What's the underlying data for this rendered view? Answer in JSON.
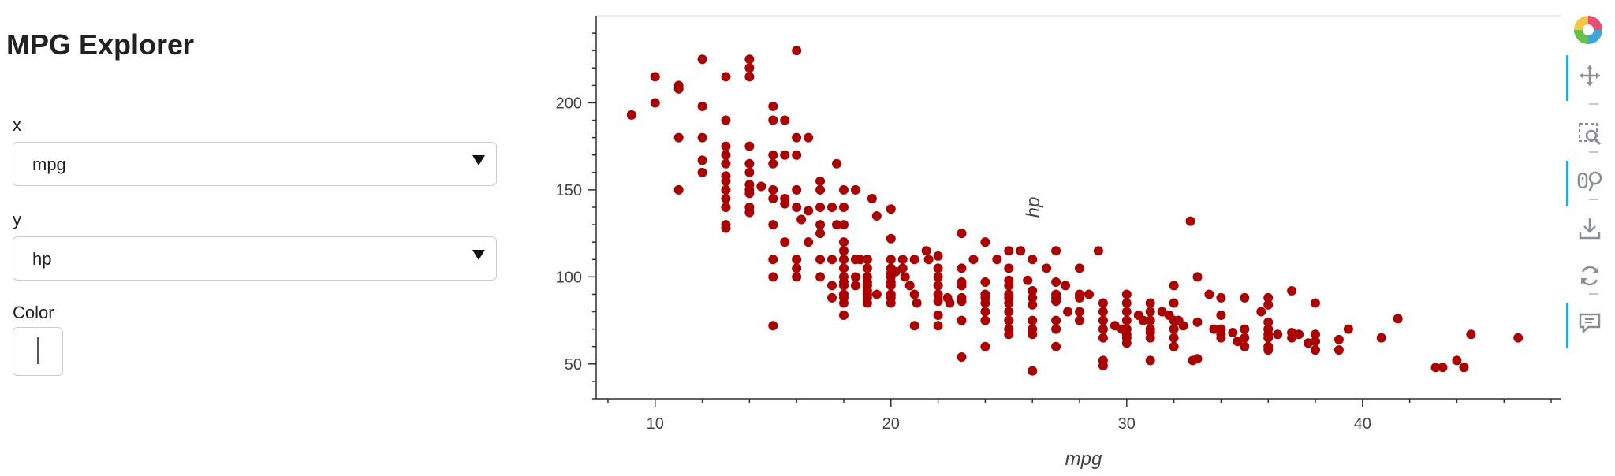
{
  "app": {
    "title": "MPG Explorer"
  },
  "controls": {
    "x": {
      "label": "x",
      "value": "mpg"
    },
    "y": {
      "label": "y",
      "value": "hp"
    },
    "color": {
      "label": "Color",
      "value": "#aa0000"
    }
  },
  "toolbar": {
    "tools": [
      {
        "name": "bokeh-logo-icon",
        "active": false
      },
      {
        "name": "pan-icon",
        "active": true
      },
      {
        "name": "box-zoom-icon",
        "active": false
      },
      {
        "name": "wheel-zoom-icon",
        "active": true
      },
      {
        "name": "save-icon",
        "active": false
      },
      {
        "name": "reset-icon",
        "active": false
      },
      {
        "name": "hover-icon",
        "active": true
      }
    ]
  },
  "chart_data": {
    "type": "scatter",
    "xlabel": "mpg",
    "ylabel": "hp",
    "xlim": [
      7.5,
      48.5
    ],
    "ylim": [
      30,
      250
    ],
    "x_ticks": [
      10,
      20,
      30,
      40
    ],
    "y_ticks": [
      50,
      100,
      150,
      200
    ],
    "color": "#aa0000",
    "grid": false,
    "points": [
      [
        9,
        193
      ],
      [
        10,
        215
      ],
      [
        10,
        200
      ],
      [
        11,
        210
      ],
      [
        11,
        208
      ],
      [
        11,
        180
      ],
      [
        11,
        150
      ],
      [
        12,
        225
      ],
      [
        12,
        198
      ],
      [
        12,
        180
      ],
      [
        12,
        167
      ],
      [
        12,
        160
      ],
      [
        13,
        215
      ],
      [
        13,
        190
      ],
      [
        13,
        175
      ],
      [
        13,
        170
      ],
      [
        13,
        165
      ],
      [
        13,
        158
      ],
      [
        13,
        155
      ],
      [
        13,
        150
      ],
      [
        13,
        145
      ],
      [
        13,
        140
      ],
      [
        13,
        130
      ],
      [
        13,
        128
      ],
      [
        14,
        225
      ],
      [
        14,
        220
      ],
      [
        14,
        215
      ],
      [
        14,
        175
      ],
      [
        14,
        165
      ],
      [
        14,
        160
      ],
      [
        14,
        153
      ],
      [
        14,
        150
      ],
      [
        14,
        148
      ],
      [
        14,
        140
      ],
      [
        14,
        137
      ],
      [
        14.5,
        152
      ],
      [
        15,
        198
      ],
      [
        15,
        190
      ],
      [
        15,
        170
      ],
      [
        15,
        165
      ],
      [
        15,
        150
      ],
      [
        15,
        145
      ],
      [
        15,
        130
      ],
      [
        15,
        110
      ],
      [
        15,
        100
      ],
      [
        15,
        72
      ],
      [
        15.5,
        190
      ],
      [
        15.5,
        170
      ],
      [
        15.5,
        145
      ],
      [
        15.5,
        142
      ],
      [
        15.5,
        120
      ],
      [
        16,
        230
      ],
      [
        16,
        180
      ],
      [
        16,
        170
      ],
      [
        16,
        150
      ],
      [
        16,
        140
      ],
      [
        16,
        110
      ],
      [
        16,
        105
      ],
      [
        16,
        100
      ],
      [
        16.5,
        180
      ],
      [
        16.5,
        138
      ],
      [
        16.5,
        120
      ],
      [
        16.2,
        133
      ],
      [
        17,
        155
      ],
      [
        17,
        150
      ],
      [
        17,
        140
      ],
      [
        17,
        130
      ],
      [
        17,
        125
      ],
      [
        17,
        110
      ],
      [
        17,
        100
      ],
      [
        17.5,
        140
      ],
      [
        17.5,
        110
      ],
      [
        17.5,
        95
      ],
      [
        17.5,
        88
      ],
      [
        17.7,
        165
      ],
      [
        17.7,
        130
      ],
      [
        18,
        150
      ],
      [
        18,
        140
      ],
      [
        18,
        130
      ],
      [
        18,
        120
      ],
      [
        18,
        115
      ],
      [
        18,
        110
      ],
      [
        18,
        105
      ],
      [
        18,
        100
      ],
      [
        18,
        97
      ],
      [
        18,
        95
      ],
      [
        18,
        90
      ],
      [
        18,
        88
      ],
      [
        18,
        85
      ],
      [
        18,
        78
      ],
      [
        18.5,
        150
      ],
      [
        18.5,
        110
      ],
      [
        18.5,
        100
      ],
      [
        18.5,
        95
      ],
      [
        18.7,
        110
      ],
      [
        19,
        110
      ],
      [
        19,
        105
      ],
      [
        19,
        100
      ],
      [
        19,
        97
      ],
      [
        19,
        95
      ],
      [
        19,
        92
      ],
      [
        19,
        90
      ],
      [
        19,
        88
      ],
      [
        19,
        85
      ],
      [
        19.2,
        145
      ],
      [
        19.4,
        135
      ],
      [
        19.4,
        90
      ],
      [
        20,
        139
      ],
      [
        20,
        122
      ],
      [
        20,
        110
      ],
      [
        20,
        105
      ],
      [
        20,
        102
      ],
      [
        20,
        100
      ],
      [
        20,
        97
      ],
      [
        20,
        95
      ],
      [
        20,
        90
      ],
      [
        20,
        88
      ],
      [
        20,
        85
      ],
      [
        20.2,
        103
      ],
      [
        20.5,
        105
      ],
      [
        20.5,
        110
      ],
      [
        20.6,
        100
      ],
      [
        20.8,
        95
      ],
      [
        21,
        110
      ],
      [
        21,
        90
      ],
      [
        21,
        72
      ],
      [
        21.1,
        85
      ],
      [
        21.5,
        115
      ],
      [
        21.6,
        110
      ],
      [
        22,
        112
      ],
      [
        22,
        105
      ],
      [
        22,
        100
      ],
      [
        22,
        95
      ],
      [
        22,
        90
      ],
      [
        22,
        86
      ],
      [
        22,
        78
      ],
      [
        22,
        72
      ],
      [
        22.4,
        88
      ],
      [
        22.5,
        85
      ],
      [
        23,
        125
      ],
      [
        23,
        105
      ],
      [
        23,
        97
      ],
      [
        23,
        95
      ],
      [
        23,
        88
      ],
      [
        23,
        86
      ],
      [
        23,
        75
      ],
      [
        23,
        54
      ],
      [
        23.5,
        110
      ],
      [
        24,
        120
      ],
      [
        24,
        97
      ],
      [
        24,
        90
      ],
      [
        24,
        88
      ],
      [
        24,
        85
      ],
      [
        24,
        80
      ],
      [
        24,
        75
      ],
      [
        24,
        60
      ],
      [
        24.5,
        110
      ],
      [
        25,
        115
      ],
      [
        25,
        105
      ],
      [
        25,
        98
      ],
      [
        25,
        95
      ],
      [
        25,
        90
      ],
      [
        25,
        88
      ],
      [
        25,
        85
      ],
      [
        25,
        80
      ],
      [
        25,
        75
      ],
      [
        25,
        70
      ],
      [
        25,
        67
      ],
      [
        25.5,
        115
      ],
      [
        25.8,
        98
      ],
      [
        26,
        110
      ],
      [
        26,
        92
      ],
      [
        26,
        88
      ],
      [
        26,
        84
      ],
      [
        26,
        75
      ],
      [
        26,
        70
      ],
      [
        26,
        67
      ],
      [
        26,
        46
      ],
      [
        26.6,
        105
      ],
      [
        27,
        115
      ],
      [
        27,
        97
      ],
      [
        27,
        90
      ],
      [
        27,
        88
      ],
      [
        27,
        86
      ],
      [
        27,
        75
      ],
      [
        27,
        70
      ],
      [
        27,
        60
      ],
      [
        27.4,
        95
      ],
      [
        27.5,
        80
      ],
      [
        28,
        105
      ],
      [
        28,
        90
      ],
      [
        28,
        88
      ],
      [
        28,
        80
      ],
      [
        28,
        75
      ],
      [
        28.4,
        90
      ],
      [
        28.8,
        115
      ],
      [
        29,
        85
      ],
      [
        29,
        80
      ],
      [
        29,
        75
      ],
      [
        29,
        70
      ],
      [
        29,
        65
      ],
      [
        29,
        52
      ],
      [
        29,
        49
      ],
      [
        29.5,
        72
      ],
      [
        29.8,
        70
      ],
      [
        30,
        90
      ],
      [
        30,
        85
      ],
      [
        30,
        80
      ],
      [
        30,
        75
      ],
      [
        30,
        70
      ],
      [
        30,
        67
      ],
      [
        30,
        65
      ],
      [
        30,
        62
      ],
      [
        30.5,
        78
      ],
      [
        30.7,
        75
      ],
      [
        31,
        85
      ],
      [
        31,
        80
      ],
      [
        31,
        75
      ],
      [
        31,
        70
      ],
      [
        31,
        68
      ],
      [
        31,
        65
      ],
      [
        31,
        52
      ],
      [
        31.5,
        80
      ],
      [
        31.8,
        78
      ],
      [
        32,
        95
      ],
      [
        32,
        85
      ],
      [
        32,
        75
      ],
      [
        32,
        70
      ],
      [
        32,
        65
      ],
      [
        32,
        60
      ],
      [
        32.2,
        75
      ],
      [
        32.4,
        72
      ],
      [
        32.7,
        132
      ],
      [
        32.8,
        52
      ],
      [
        33,
        100
      ],
      [
        33,
        53
      ],
      [
        33,
        74
      ],
      [
        33.5,
        90
      ],
      [
        33.7,
        70
      ],
      [
        34,
        88
      ],
      [
        34,
        78
      ],
      [
        34,
        70
      ],
      [
        34,
        67
      ],
      [
        34,
        65
      ],
      [
        34.5,
        68
      ],
      [
        34.7,
        63
      ],
      [
        35,
        88
      ],
      [
        35,
        70
      ],
      [
        35,
        65
      ],
      [
        35,
        60
      ],
      [
        35.7,
        80
      ],
      [
        36,
        88
      ],
      [
        36,
        84
      ],
      [
        36,
        74
      ],
      [
        36,
        70
      ],
      [
        36,
        67
      ],
      [
        36,
        65
      ],
      [
        36,
        60
      ],
      [
        36,
        58
      ],
      [
        36.4,
        67
      ],
      [
        37,
        92
      ],
      [
        37,
        68
      ],
      [
        37,
        65
      ],
      [
        37.3,
        67
      ],
      [
        37.7,
        62
      ],
      [
        38,
        85
      ],
      [
        38,
        67
      ],
      [
        38,
        63
      ],
      [
        38,
        58
      ],
      [
        39,
        64
      ],
      [
        39,
        58
      ],
      [
        39.4,
        70
      ],
      [
        40.8,
        65
      ],
      [
        41.5,
        76
      ],
      [
        43.1,
        48
      ],
      [
        43.4,
        48
      ],
      [
        44,
        52
      ],
      [
        44.3,
        48
      ],
      [
        44.6,
        67
      ],
      [
        46.6,
        65
      ]
    ]
  }
}
